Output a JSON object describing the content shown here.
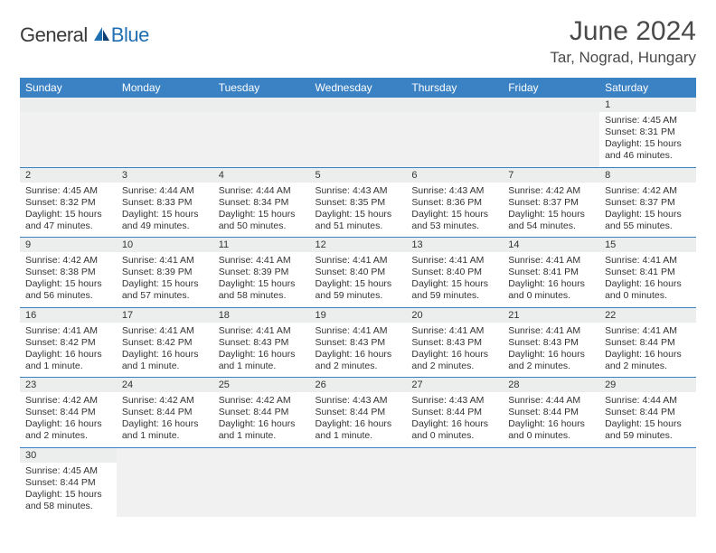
{
  "brand": {
    "general": "General",
    "blue": "Blue"
  },
  "title": {
    "month": "June 2024",
    "location": "Tar, Nograd, Hungary"
  },
  "colors": {
    "header_bg": "#3b82c4",
    "header_fg": "#ffffff",
    "daynum_bg": "#eceded",
    "row_divider": "#3b82c4",
    "brand_blue": "#1f6fb2",
    "text": "#333333",
    "background": "#ffffff"
  },
  "calendar": {
    "type": "table",
    "columns": [
      "Sunday",
      "Monday",
      "Tuesday",
      "Wednesday",
      "Thursday",
      "Friday",
      "Saturday"
    ],
    "first_weekday_index": 6,
    "days": [
      {
        "n": 1,
        "sunrise": "4:45 AM",
        "sunset": "8:31 PM",
        "daylight": "15 hours and 46 minutes."
      },
      {
        "n": 2,
        "sunrise": "4:45 AM",
        "sunset": "8:32 PM",
        "daylight": "15 hours and 47 minutes."
      },
      {
        "n": 3,
        "sunrise": "4:44 AM",
        "sunset": "8:33 PM",
        "daylight": "15 hours and 49 minutes."
      },
      {
        "n": 4,
        "sunrise": "4:44 AM",
        "sunset": "8:34 PM",
        "daylight": "15 hours and 50 minutes."
      },
      {
        "n": 5,
        "sunrise": "4:43 AM",
        "sunset": "8:35 PM",
        "daylight": "15 hours and 51 minutes."
      },
      {
        "n": 6,
        "sunrise": "4:43 AM",
        "sunset": "8:36 PM",
        "daylight": "15 hours and 53 minutes."
      },
      {
        "n": 7,
        "sunrise": "4:42 AM",
        "sunset": "8:37 PM",
        "daylight": "15 hours and 54 minutes."
      },
      {
        "n": 8,
        "sunrise": "4:42 AM",
        "sunset": "8:37 PM",
        "daylight": "15 hours and 55 minutes."
      },
      {
        "n": 9,
        "sunrise": "4:42 AM",
        "sunset": "8:38 PM",
        "daylight": "15 hours and 56 minutes."
      },
      {
        "n": 10,
        "sunrise": "4:41 AM",
        "sunset": "8:39 PM",
        "daylight": "15 hours and 57 minutes."
      },
      {
        "n": 11,
        "sunrise": "4:41 AM",
        "sunset": "8:39 PM",
        "daylight": "15 hours and 58 minutes."
      },
      {
        "n": 12,
        "sunrise": "4:41 AM",
        "sunset": "8:40 PM",
        "daylight": "15 hours and 59 minutes."
      },
      {
        "n": 13,
        "sunrise": "4:41 AM",
        "sunset": "8:40 PM",
        "daylight": "15 hours and 59 minutes."
      },
      {
        "n": 14,
        "sunrise": "4:41 AM",
        "sunset": "8:41 PM",
        "daylight": "16 hours and 0 minutes."
      },
      {
        "n": 15,
        "sunrise": "4:41 AM",
        "sunset": "8:41 PM",
        "daylight": "16 hours and 0 minutes."
      },
      {
        "n": 16,
        "sunrise": "4:41 AM",
        "sunset": "8:42 PM",
        "daylight": "16 hours and 1 minute."
      },
      {
        "n": 17,
        "sunrise": "4:41 AM",
        "sunset": "8:42 PM",
        "daylight": "16 hours and 1 minute."
      },
      {
        "n": 18,
        "sunrise": "4:41 AM",
        "sunset": "8:43 PM",
        "daylight": "16 hours and 1 minute."
      },
      {
        "n": 19,
        "sunrise": "4:41 AM",
        "sunset": "8:43 PM",
        "daylight": "16 hours and 2 minutes."
      },
      {
        "n": 20,
        "sunrise": "4:41 AM",
        "sunset": "8:43 PM",
        "daylight": "16 hours and 2 minutes."
      },
      {
        "n": 21,
        "sunrise": "4:41 AM",
        "sunset": "8:43 PM",
        "daylight": "16 hours and 2 minutes."
      },
      {
        "n": 22,
        "sunrise": "4:41 AM",
        "sunset": "8:44 PM",
        "daylight": "16 hours and 2 minutes."
      },
      {
        "n": 23,
        "sunrise": "4:42 AM",
        "sunset": "8:44 PM",
        "daylight": "16 hours and 2 minutes."
      },
      {
        "n": 24,
        "sunrise": "4:42 AM",
        "sunset": "8:44 PM",
        "daylight": "16 hours and 1 minute."
      },
      {
        "n": 25,
        "sunrise": "4:42 AM",
        "sunset": "8:44 PM",
        "daylight": "16 hours and 1 minute."
      },
      {
        "n": 26,
        "sunrise": "4:43 AM",
        "sunset": "8:44 PM",
        "daylight": "16 hours and 1 minute."
      },
      {
        "n": 27,
        "sunrise": "4:43 AM",
        "sunset": "8:44 PM",
        "daylight": "16 hours and 0 minutes."
      },
      {
        "n": 28,
        "sunrise": "4:44 AM",
        "sunset": "8:44 PM",
        "daylight": "16 hours and 0 minutes."
      },
      {
        "n": 29,
        "sunrise": "4:44 AM",
        "sunset": "8:44 PM",
        "daylight": "15 hours and 59 minutes."
      },
      {
        "n": 30,
        "sunrise": "4:45 AM",
        "sunset": "8:44 PM",
        "daylight": "15 hours and 58 minutes."
      }
    ],
    "labels": {
      "sunrise": "Sunrise:",
      "sunset": "Sunset:",
      "daylight": "Daylight:"
    }
  }
}
